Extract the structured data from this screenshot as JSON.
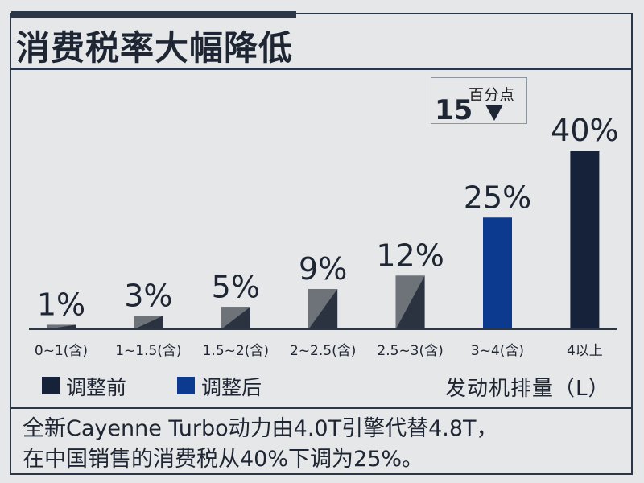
{
  "title": "消费税率大幅降低",
  "note": {
    "value": "15",
    "unit": "百分点"
  },
  "legend": [
    {
      "label": "调整前",
      "color": "#16223a"
    },
    {
      "label": "调整后",
      "color": "#0b3a8f"
    }
  ],
  "x_unit": "发动机排量（L）",
  "caption": [
    "全新Cayenne Turbo动力由4.0T引擎代替4.8T，",
    "在中国销售的消费税从40%下调为25%。"
  ],
  "colors": {
    "before_bar": "#2b3240",
    "before_highlight": "#6e7279",
    "after_bar": "#0b3a8f",
    "top_bar": "#16223a",
    "axis": "#2b3648"
  },
  "chart_data": {
    "type": "bar",
    "categories": [
      "0~1(含)",
      "1~1.5(含)",
      "1.5~2(含)",
      "2~2.5(含)",
      "2.5~3(含)",
      "3~4(含)",
      "4以上"
    ],
    "values": [
      1,
      3,
      5,
      9,
      12,
      25,
      40
    ],
    "data_labels": [
      "1%",
      "3%",
      "5%",
      "9%",
      "12%",
      "25%",
      "40%"
    ],
    "series_of_bar": [
      "调整前",
      "调整前",
      "调整前",
      "调整前",
      "调整前",
      "调整后",
      "调整前"
    ],
    "ylim": [
      0,
      40
    ],
    "grid": false,
    "legend_position": "bottom-left"
  }
}
